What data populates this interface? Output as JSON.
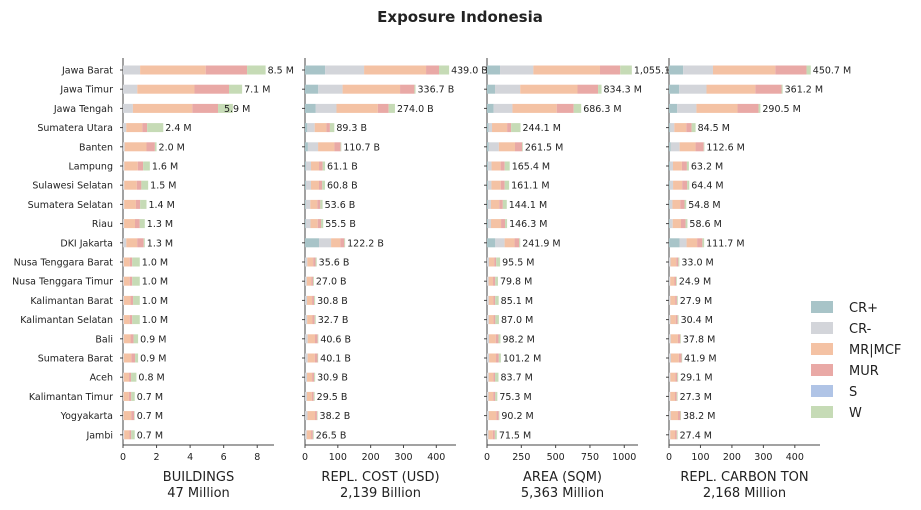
{
  "chart_data": {
    "type": "bar",
    "stacked": true,
    "orientation": "horizontal",
    "title": "Exposure Indonesia",
    "categories": [
      "Jawa Barat",
      "Jawa Timur",
      "Jawa Tengah",
      "Sumatera Utara",
      "Banten",
      "Lampung",
      "Sulawesi Selatan",
      "Sumatera Selatan",
      "Riau",
      "DKI Jakarta",
      "Nusa Tenggara Barat",
      "Nusa Tenggara Timur",
      "Kalimantan Barat",
      "Kalimantan Selatan",
      "Bali",
      "Sumatera Barat",
      "Aceh",
      "Kalimantan Timur",
      "Yogyakarta",
      "Jambi"
    ],
    "legend": {
      "position": "right",
      "items": [
        {
          "name": "CR+",
          "color": "#a8c4c8"
        },
        {
          "name": "CR-",
          "color": "#d3d5da"
        },
        {
          "name": "MR|MCF",
          "color": "#f4c2a4"
        },
        {
          "name": "MUR",
          "color": "#e9a9a6"
        },
        {
          "name": "S",
          "color": "#b0c4e6"
        },
        {
          "name": "W",
          "color": "#c6dbb6"
        }
      ]
    },
    "panels": [
      {
        "xlabel": "BUILDINGS",
        "total": "47 Million",
        "xlim": [
          0,
          9
        ],
        "ticks": [
          0,
          2,
          4,
          6,
          8
        ],
        "totals": [
          8.5,
          7.1,
          5.9,
          2.4,
          2.0,
          1.6,
          1.5,
          1.4,
          1.3,
          1.3,
          1.0,
          1.0,
          1.0,
          1.0,
          0.9,
          0.9,
          0.8,
          0.7,
          0.7,
          0.7
        ],
        "labels": [
          "8.5 M",
          "7.1 M",
          "5.9 M",
          "2.4 M",
          "2.0 M",
          "1.6 M",
          "1.5 M",
          "1.4 M",
          "1.3 M",
          "1.3 M",
          "1.0 M",
          "1.0 M",
          "1.0 M",
          "1.0 M",
          "0.9 M",
          "0.9 M",
          "0.8 M",
          "0.7 M",
          "0.7 M",
          "0.7 M"
        ],
        "shares": [
          [
            0.0,
            0.12,
            0.46,
            0.29,
            0.0,
            0.13
          ],
          [
            0.0,
            0.12,
            0.48,
            0.29,
            0.0,
            0.11
          ],
          [
            0.0,
            0.1,
            0.6,
            0.26,
            0.0,
            0.15
          ],
          [
            0.0,
            0.08,
            0.4,
            0.12,
            0.0,
            0.4
          ],
          [
            0.0,
            0.05,
            0.65,
            0.25,
            0.0,
            0.05
          ],
          [
            0.0,
            0.05,
            0.5,
            0.2,
            0.0,
            0.25
          ],
          [
            0.0,
            0.05,
            0.5,
            0.18,
            0.0,
            0.27
          ],
          [
            0.0,
            0.05,
            0.5,
            0.18,
            0.0,
            0.27
          ],
          [
            0.0,
            0.05,
            0.5,
            0.22,
            0.0,
            0.23
          ],
          [
            0.0,
            0.15,
            0.5,
            0.3,
            0.0,
            0.05
          ],
          [
            0.0,
            0.05,
            0.35,
            0.15,
            0.0,
            0.45
          ],
          [
            0.0,
            0.05,
            0.35,
            0.15,
            0.0,
            0.45
          ],
          [
            0.0,
            0.05,
            0.4,
            0.15,
            0.0,
            0.4
          ],
          [
            0.0,
            0.05,
            0.35,
            0.15,
            0.0,
            0.45
          ],
          [
            0.0,
            0.05,
            0.45,
            0.2,
            0.0,
            0.3
          ],
          [
            0.0,
            0.05,
            0.5,
            0.25,
            0.0,
            0.2
          ],
          [
            0.0,
            0.05,
            0.4,
            0.15,
            0.0,
            0.4
          ],
          [
            0.0,
            0.05,
            0.45,
            0.2,
            0.0,
            0.3
          ],
          [
            0.0,
            0.05,
            0.65,
            0.25,
            0.0,
            0.05
          ],
          [
            0.0,
            0.1,
            0.45,
            0.15,
            0.0,
            0.3
          ]
        ]
      },
      {
        "xlabel": "REPL. COST (USD)",
        "total": "2,139 Billion",
        "xlim": [
          0,
          460
        ],
        "ticks": [
          0,
          100,
          200,
          300,
          400
        ],
        "totals": [
          439.0,
          336.7,
          274.0,
          89.3,
          110.7,
          61.1,
          60.8,
          53.6,
          55.5,
          122.2,
          35.6,
          27.0,
          30.8,
          32.7,
          40.6,
          40.1,
          30.9,
          29.5,
          38.2,
          26.5
        ],
        "labels": [
          "439.0 B",
          "336.7 B",
          "274.0 B",
          "89.3 B",
          "110.7 B",
          "61.1 B",
          "60.8 B",
          "53.6 B",
          "55.5 B",
          "122.2 B",
          "35.6 B",
          "27.0 B",
          "30.8 B",
          "32.7 B",
          "40.6 B",
          "40.1 B",
          "30.9 B",
          "29.5 B",
          "38.2 B",
          "26.5 B"
        ],
        "shares": [
          [
            0.14,
            0.27,
            0.43,
            0.09,
            0.0,
            0.07
          ],
          [
            0.12,
            0.22,
            0.52,
            0.13,
            0.0,
            0.01
          ],
          [
            0.12,
            0.23,
            0.46,
            0.12,
            0.0,
            0.07
          ],
          [
            0.08,
            0.25,
            0.4,
            0.12,
            0.0,
            0.15
          ],
          [
            0.08,
            0.28,
            0.45,
            0.17,
            0.0,
            0.02
          ],
          [
            0.05,
            0.25,
            0.4,
            0.18,
            0.0,
            0.12
          ],
          [
            0.05,
            0.25,
            0.4,
            0.16,
            0.0,
            0.14
          ],
          [
            0.05,
            0.25,
            0.4,
            0.17,
            0.0,
            0.13
          ],
          [
            0.05,
            0.25,
            0.4,
            0.18,
            0.0,
            0.12
          ],
          [
            0.35,
            0.3,
            0.23,
            0.1,
            0.0,
            0.02
          ],
          [
            0.0,
            0.2,
            0.5,
            0.2,
            0.0,
            0.1
          ],
          [
            0.0,
            0.2,
            0.5,
            0.2,
            0.0,
            0.1
          ],
          [
            0.0,
            0.2,
            0.5,
            0.2,
            0.0,
            0.1
          ],
          [
            0.0,
            0.2,
            0.5,
            0.2,
            0.0,
            0.1
          ],
          [
            0.0,
            0.2,
            0.55,
            0.2,
            0.0,
            0.05
          ],
          [
            0.0,
            0.2,
            0.55,
            0.2,
            0.0,
            0.05
          ],
          [
            0.0,
            0.2,
            0.5,
            0.2,
            0.0,
            0.1
          ],
          [
            0.0,
            0.2,
            0.5,
            0.2,
            0.0,
            0.1
          ],
          [
            0.0,
            0.2,
            0.6,
            0.15,
            0.0,
            0.05
          ],
          [
            0.0,
            0.2,
            0.5,
            0.2,
            0.0,
            0.1
          ]
        ]
      },
      {
        "xlabel": "AREA (SQM)",
        "total": "5,363 Million",
        "xlim": [
          0,
          1100
        ],
        "ticks": [
          0,
          250,
          500,
          750,
          1000
        ],
        "totals": [
          1055.1,
          834.3,
          686.3,
          244.1,
          261.5,
          165.4,
          161.1,
          144.1,
          146.3,
          241.9,
          95.5,
          79.8,
          85.1,
          87.0,
          98.2,
          101.2,
          83.7,
          75.3,
          90.2,
          71.5
        ],
        "labels": [
          "1,055.1",
          "834.3 M",
          "686.3 M",
          "244.1 M",
          "261.5 M",
          "165.4 M",
          "161.1 M",
          "144.1 M",
          "146.3 M",
          "241.9 M",
          "95.5 M",
          "79.8 M",
          "85.1 M",
          "87.0 M",
          "98.2 M",
          "101.2 M",
          "83.7 M",
          "75.3 M",
          "90.2 M",
          "71.5 M"
        ],
        "shares": [
          [
            0.09,
            0.23,
            0.46,
            0.14,
            0.0,
            0.08
          ],
          [
            0.07,
            0.22,
            0.5,
            0.18,
            0.0,
            0.03
          ],
          [
            0.07,
            0.2,
            0.47,
            0.18,
            0.0,
            0.08
          ],
          [
            0.05,
            0.1,
            0.45,
            0.12,
            0.0,
            0.28
          ],
          [
            0.05,
            0.28,
            0.45,
            0.2,
            0.0,
            0.02
          ],
          [
            0.05,
            0.15,
            0.4,
            0.18,
            0.0,
            0.22
          ],
          [
            0.05,
            0.15,
            0.42,
            0.18,
            0.0,
            0.2
          ],
          [
            0.05,
            0.15,
            0.42,
            0.18,
            0.0,
            0.2
          ],
          [
            0.05,
            0.15,
            0.5,
            0.2,
            0.0,
            0.1
          ],
          [
            0.25,
            0.28,
            0.3,
            0.14,
            0.0,
            0.03
          ],
          [
            0.0,
            0.15,
            0.4,
            0.15,
            0.0,
            0.3
          ],
          [
            0.0,
            0.15,
            0.4,
            0.2,
            0.0,
            0.25
          ],
          [
            0.0,
            0.15,
            0.4,
            0.15,
            0.0,
            0.3
          ],
          [
            0.0,
            0.15,
            0.4,
            0.15,
            0.0,
            0.3
          ],
          [
            0.0,
            0.15,
            0.5,
            0.2,
            0.0,
            0.15
          ],
          [
            0.0,
            0.15,
            0.5,
            0.2,
            0.0,
            0.15
          ],
          [
            0.0,
            0.15,
            0.4,
            0.15,
            0.0,
            0.3
          ],
          [
            0.0,
            0.15,
            0.45,
            0.2,
            0.0,
            0.2
          ],
          [
            0.0,
            0.15,
            0.6,
            0.2,
            0.0,
            0.05
          ],
          [
            0.0,
            0.15,
            0.45,
            0.2,
            0.0,
            0.2
          ]
        ]
      },
      {
        "xlabel": "REPL. CARBON TON",
        "total": "2,168 Million",
        "xlim": [
          0,
          480
        ],
        "ticks": [
          0,
          100,
          200,
          300,
          400
        ],
        "totals": [
          450.7,
          361.2,
          290.5,
          84.5,
          112.6,
          63.2,
          64.4,
          54.8,
          58.6,
          111.7,
          33.0,
          24.9,
          27.9,
          30.4,
          37.8,
          41.9,
          29.1,
          27.3,
          38.2,
          27.4
        ],
        "labels": [
          "450.7 M",
          "361.2 M",
          "290.5 M",
          "84.5 M",
          "112.6 M",
          "63.2 M",
          "64.4 M",
          "54.8 M",
          "58.6 M",
          "111.7 M",
          "33.0 M",
          "24.9 M",
          "27.9 M",
          "30.4 M",
          "37.8 M",
          "41.9 M",
          "29.1 M",
          "27.3 M",
          "38.2 M",
          "27.4 M"
        ],
        "shares": [
          [
            0.1,
            0.21,
            0.44,
            0.22,
            0.0,
            0.03
          ],
          [
            0.09,
            0.24,
            0.43,
            0.23,
            0.0,
            0.01
          ],
          [
            0.09,
            0.21,
            0.45,
            0.23,
            0.0,
            0.02
          ],
          [
            0.05,
            0.15,
            0.45,
            0.2,
            0.0,
            0.15
          ],
          [
            0.05,
            0.25,
            0.45,
            0.23,
            0.0,
            0.02
          ],
          [
            0.05,
            0.15,
            0.45,
            0.25,
            0.0,
            0.1
          ],
          [
            0.05,
            0.15,
            0.45,
            0.25,
            0.0,
            0.1
          ],
          [
            0.05,
            0.15,
            0.45,
            0.25,
            0.0,
            0.1
          ],
          [
            0.05,
            0.15,
            0.45,
            0.25,
            0.0,
            0.1
          ],
          [
            0.3,
            0.2,
            0.3,
            0.15,
            0.0,
            0.05
          ],
          [
            0.0,
            0.15,
            0.55,
            0.2,
            0.0,
            0.1
          ],
          [
            0.0,
            0.15,
            0.55,
            0.2,
            0.0,
            0.1
          ],
          [
            0.0,
            0.15,
            0.55,
            0.2,
            0.0,
            0.1
          ],
          [
            0.0,
            0.15,
            0.55,
            0.2,
            0.0,
            0.1
          ],
          [
            0.0,
            0.15,
            0.6,
            0.2,
            0.0,
            0.05
          ],
          [
            0.0,
            0.15,
            0.6,
            0.2,
            0.0,
            0.05
          ],
          [
            0.0,
            0.15,
            0.55,
            0.2,
            0.0,
            0.1
          ],
          [
            0.0,
            0.15,
            0.55,
            0.2,
            0.0,
            0.1
          ],
          [
            0.0,
            0.15,
            0.6,
            0.2,
            0.0,
            0.05
          ],
          [
            0.0,
            0.15,
            0.55,
            0.2,
            0.0,
            0.1
          ]
        ]
      }
    ]
  }
}
